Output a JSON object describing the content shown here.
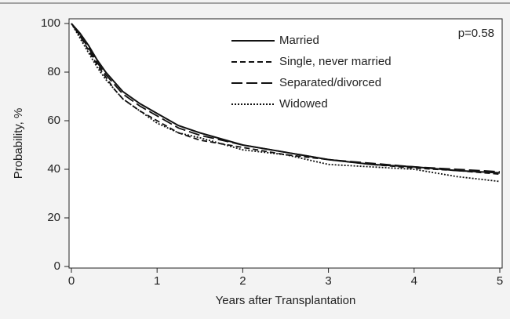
{
  "chart_data": {
    "type": "line",
    "annotation": "p=0.58",
    "x_label": "Years after Transplantation",
    "y_label": "Probability, %",
    "x": [
      0,
      0.1,
      0.2,
      0.3,
      0.4,
      0.5,
      0.6,
      0.8,
      1,
      1.25,
      1.5,
      2,
      2.5,
      3,
      3.5,
      4,
      4.5,
      5
    ],
    "series": [
      {
        "name": "Married",
        "color": "#111111",
        "dash": "solid",
        "values": [
          100,
          96,
          91,
          85,
          80,
          76,
          72,
          67,
          63,
          58,
          55,
          50,
          47,
          44,
          42,
          41,
          39.5,
          38.5
        ]
      },
      {
        "name": "Single, never married",
        "color": "#111111",
        "dash": "short",
        "values": [
          100,
          95,
          89,
          83,
          78,
          73,
          69,
          64,
          60,
          55,
          52,
          49,
          46,
          44,
          42,
          40.5,
          39.5,
          38
        ]
      },
      {
        "name": "Separated/divorced",
        "color": "#111111",
        "dash": "long",
        "values": [
          100,
          95,
          90,
          84,
          79,
          75,
          71,
          66,
          62,
          57,
          54,
          50,
          47,
          44,
          42.5,
          41,
          40,
          39
        ]
      },
      {
        "name": "Widowed",
        "color": "#111111",
        "dash": "dotted",
        "values": [
          100,
          94,
          88,
          82,
          77,
          73,
          69,
          64,
          59,
          55,
          53,
          48,
          46,
          42,
          41,
          40,
          37,
          35
        ]
      }
    ],
    "xlim": [
      0,
      5
    ],
    "xticks": [
      0,
      1,
      2,
      3,
      4,
      5
    ],
    "ylim": [
      0,
      100
    ],
    "yticks": [
      0,
      20,
      40,
      60,
      80,
      100
    ],
    "legend": "top"
  }
}
